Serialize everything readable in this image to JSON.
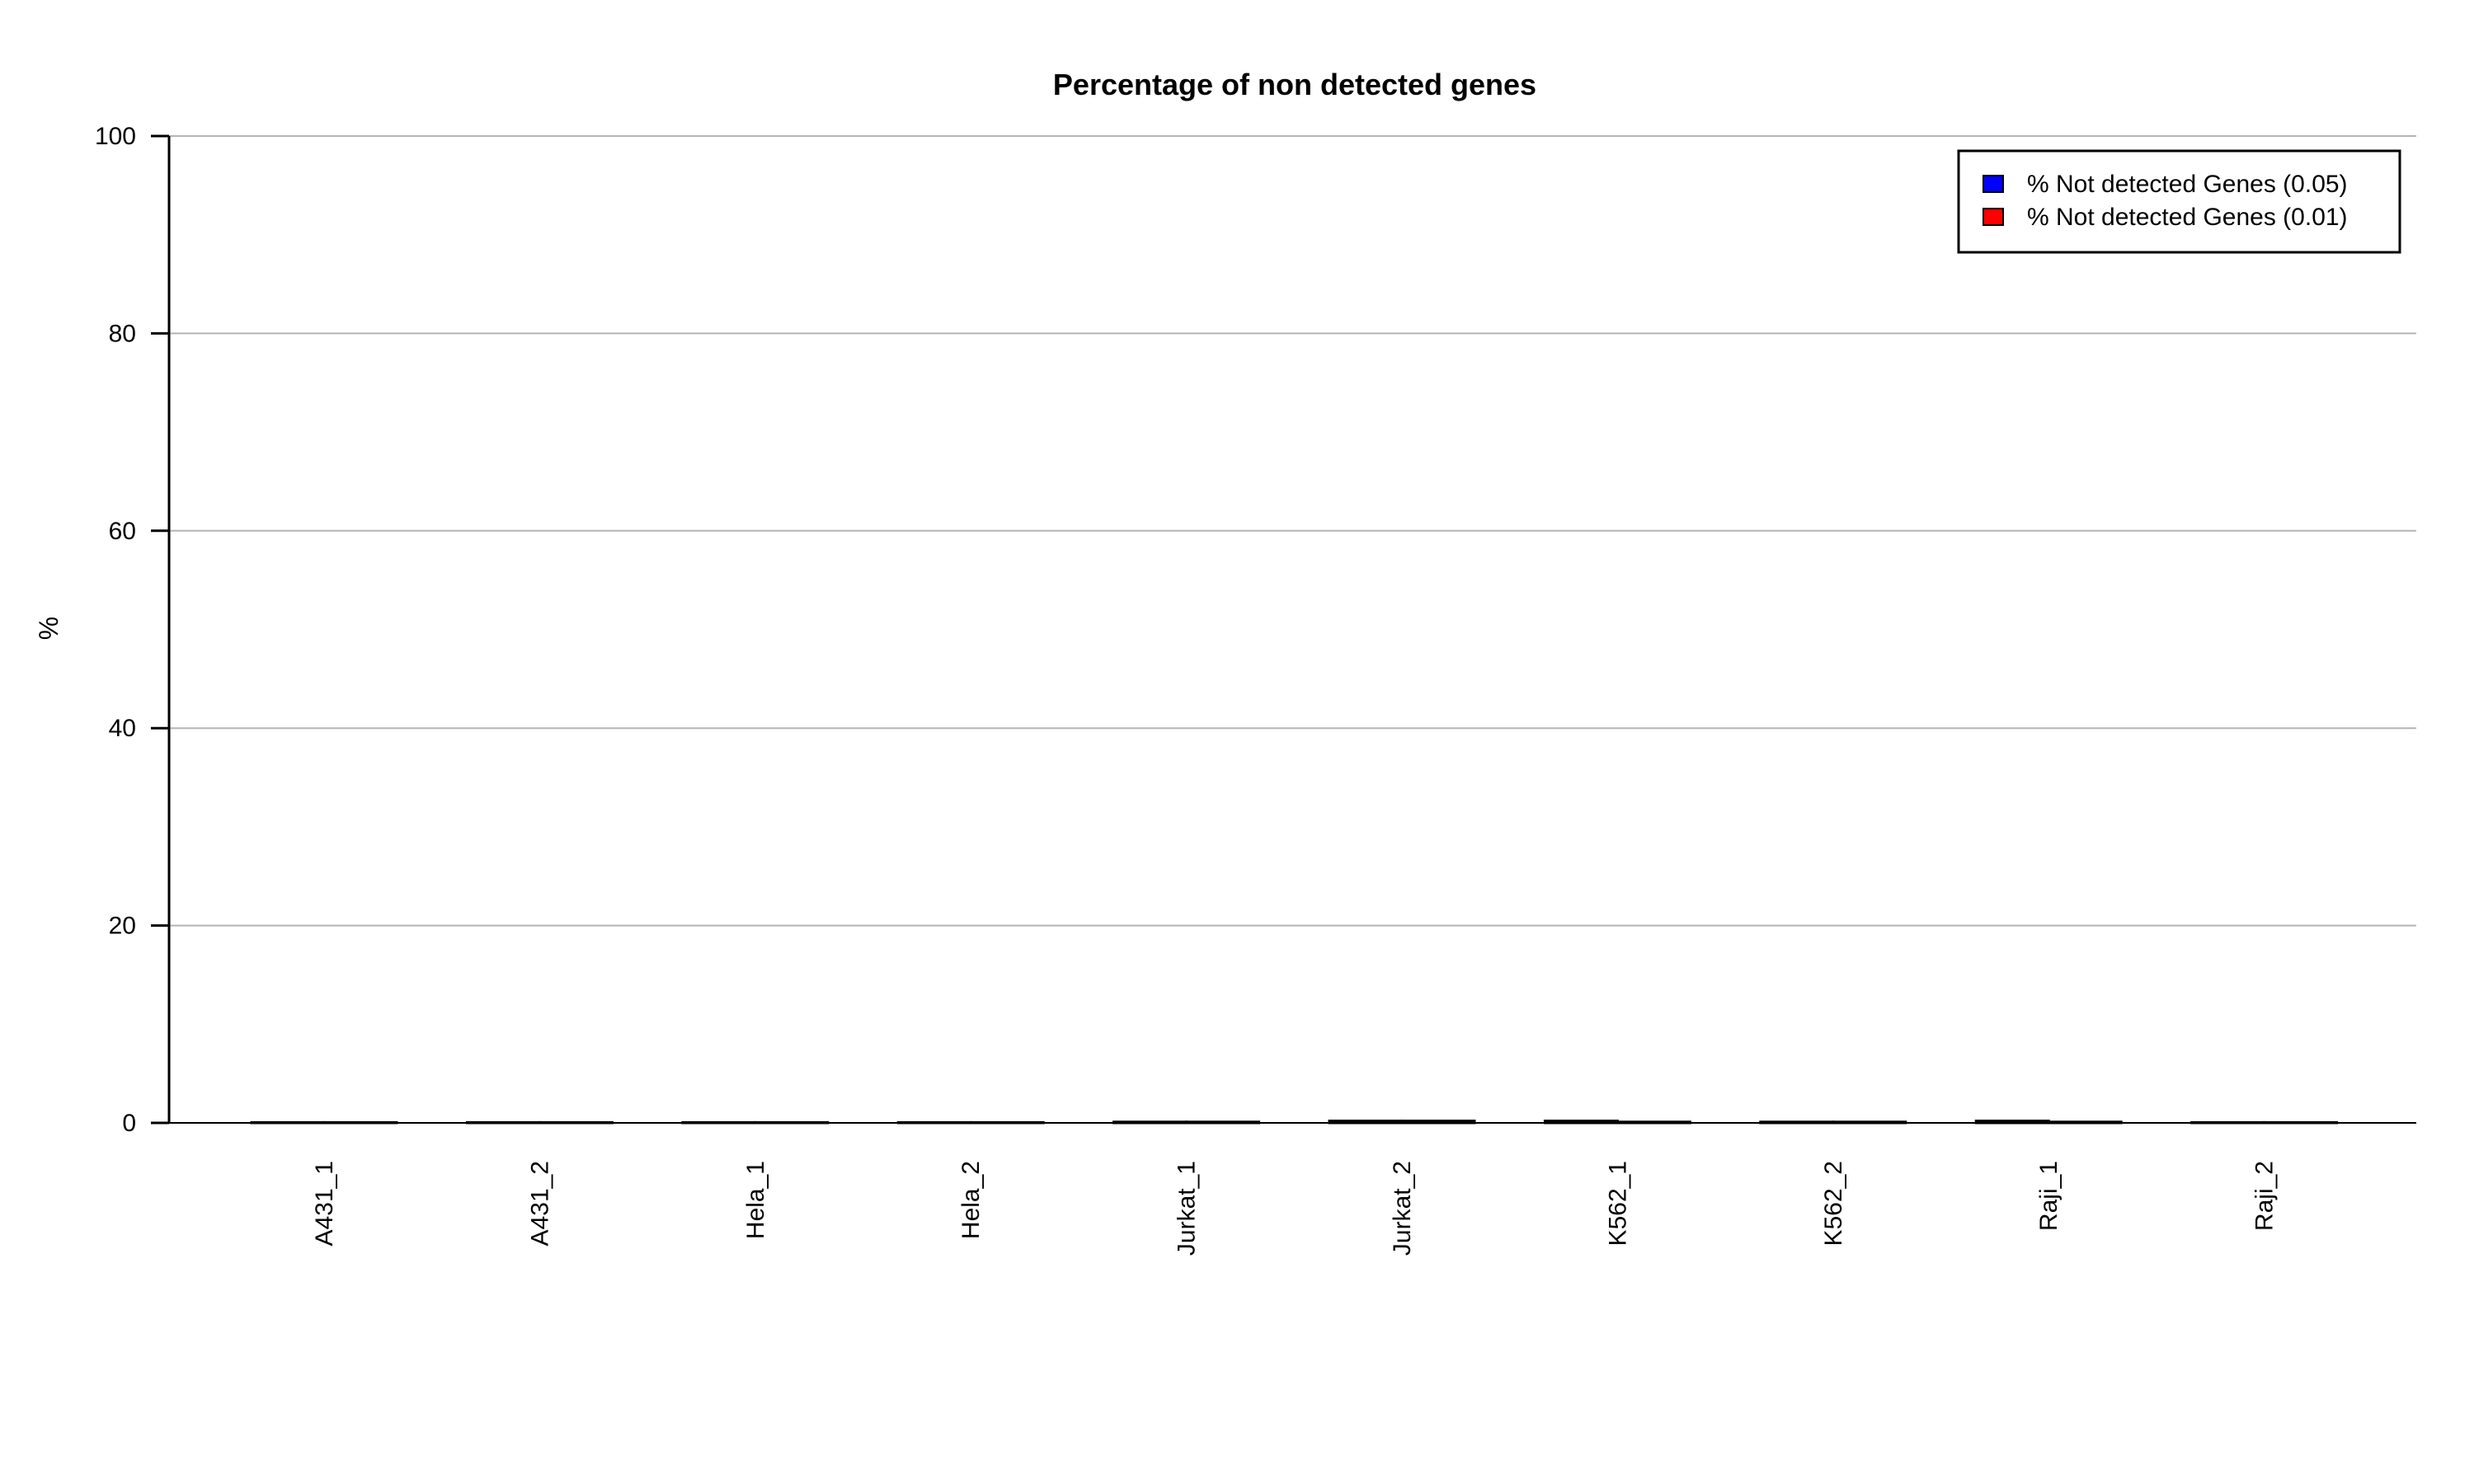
{
  "chart_data": {
    "type": "bar",
    "title": "Percentage of non detected genes",
    "xlabel": "",
    "ylabel": "%",
    "ylim": [
      0,
      100
    ],
    "yticks": [
      0,
      20,
      40,
      60,
      80,
      100
    ],
    "grid": true,
    "legend_position": "top-right",
    "categories": [
      "A431_1",
      "A431_2",
      "Hela_1",
      "Hela_2",
      "Jurkat_1",
      "Jurkat_2",
      "K562_1",
      "K562_2",
      "Raji_1",
      "Raji_2"
    ],
    "series": [
      {
        "name": "% Not detected Genes (0.05)",
        "color": "#0000ff",
        "values": [
          0.05,
          0.05,
          0.05,
          0.05,
          0.1,
          0.2,
          0.2,
          0.1,
          0.2,
          0.05
        ]
      },
      {
        "name": "% Not detected Genes (0.01)",
        "color": "#ff0000",
        "values": [
          0.05,
          0.05,
          0.05,
          0.05,
          0.1,
          0.2,
          0.1,
          0.1,
          0.1,
          0.05
        ]
      }
    ]
  }
}
